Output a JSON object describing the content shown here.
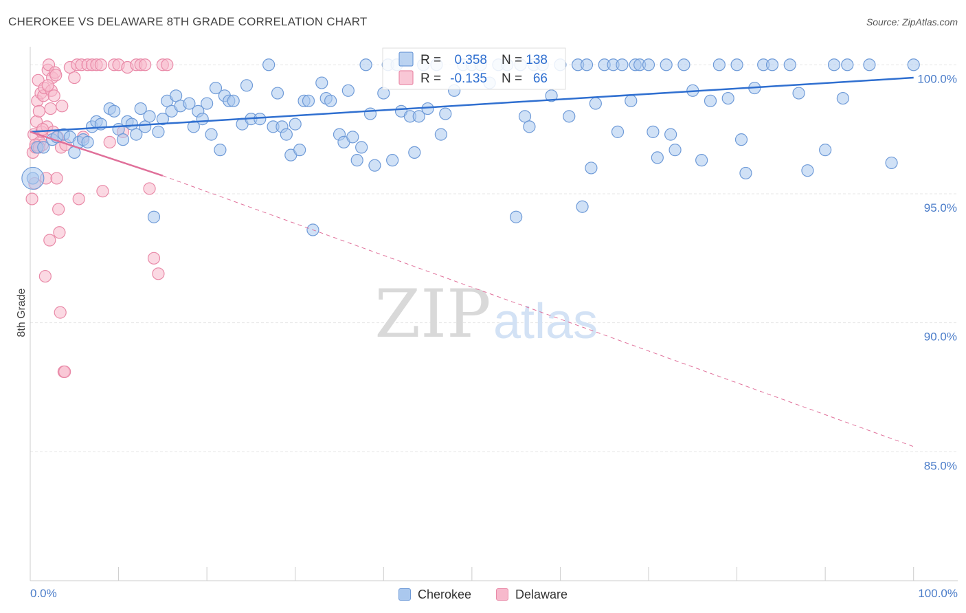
{
  "title": "CHEROKEE VS DELAWARE 8TH GRADE CORRELATION CHART",
  "source": "Source: ZipAtlas.com",
  "watermark": {
    "zip": "ZIP",
    "atlas": "atlas"
  },
  "colors": {
    "blue_fill": "#aac8ee",
    "blue_stroke": "#6f9bd8",
    "blue_line": "#2f6fd0",
    "pink_fill": "#f7b9cc",
    "pink_stroke": "#e98aa8",
    "pink_line": "#e0709a",
    "tick_text": "#4a7cc9",
    "grid": "#e6e6e6"
  },
  "chart_data": {
    "type": "scatter",
    "title": "CHEROKEE VS DELAWARE 8TH GRADE CORRELATION CHART",
    "xlabel": "",
    "ylabel": "8th Grade",
    "xlim": [
      0,
      105
    ],
    "ylim": [
      80.0,
      100.7
    ],
    "x_tick_labels": [
      {
        "value": 0,
        "label": "0.0%"
      },
      {
        "value": 100,
        "label": "100.0%"
      }
    ],
    "x_minor_ticks": [
      0,
      10,
      20,
      30,
      40,
      50,
      60,
      70,
      80,
      90,
      100
    ],
    "y_ticks": [
      {
        "value": 100.0,
        "label": "100.0%"
      },
      {
        "value": 95.0,
        "label": "95.0%"
      },
      {
        "value": 90.0,
        "label": "90.0%"
      },
      {
        "value": 85.0,
        "label": "85.0%"
      }
    ],
    "grid": true,
    "legend": {
      "position": "top-center",
      "entries": [
        {
          "series": "Cherokee",
          "r_label": "R =",
          "r_value": "0.358",
          "n_label": "N =",
          "n_value": "138"
        },
        {
          "series": "Delaware",
          "r_label": "R =",
          "r_value": "-0.135",
          "n_label": "N =",
          "n_value": "66"
        }
      ]
    },
    "series": [
      {
        "name": "Cherokee",
        "trend": {
          "x0": 0,
          "y0": 97.4,
          "x1": 100,
          "y1": 99.5
        },
        "points": [
          [
            0.3,
            95.6
          ],
          [
            0.8,
            96.8
          ],
          [
            1.5,
            96.8
          ],
          [
            2.5,
            97.1
          ],
          [
            3.0,
            97.2
          ],
          [
            3.8,
            97.3
          ],
          [
            4.5,
            97.2
          ],
          [
            5.0,
            96.6
          ],
          [
            5.5,
            97.0
          ],
          [
            6.0,
            97.1
          ],
          [
            6.5,
            97.0
          ],
          [
            7.0,
            97.6
          ],
          [
            7.5,
            97.8
          ],
          [
            8.0,
            97.7
          ],
          [
            9.0,
            98.3
          ],
          [
            9.5,
            98.2
          ],
          [
            10.0,
            97.5
          ],
          [
            10.5,
            97.1
          ],
          [
            11.0,
            97.8
          ],
          [
            11.5,
            97.7
          ],
          [
            12.0,
            97.3
          ],
          [
            12.5,
            98.3
          ],
          [
            13.0,
            97.6
          ],
          [
            13.5,
            98.0
          ],
          [
            14.0,
            94.1
          ],
          [
            14.5,
            97.4
          ],
          [
            15.0,
            97.9
          ],
          [
            15.5,
            98.6
          ],
          [
            16.0,
            98.2
          ],
          [
            16.5,
            98.8
          ],
          [
            17.0,
            98.4
          ],
          [
            18.0,
            98.5
          ],
          [
            18.5,
            97.6
          ],
          [
            19.0,
            98.2
          ],
          [
            19.5,
            97.9
          ],
          [
            20.0,
            98.5
          ],
          [
            20.5,
            97.3
          ],
          [
            21.0,
            99.1
          ],
          [
            21.5,
            96.7
          ],
          [
            22.0,
            98.8
          ],
          [
            22.5,
            98.6
          ],
          [
            23.0,
            98.6
          ],
          [
            24.0,
            97.7
          ],
          [
            24.5,
            99.2
          ],
          [
            25.0,
            97.9
          ],
          [
            26.0,
            97.9
          ],
          [
            27.0,
            100.0
          ],
          [
            27.5,
            97.6
          ],
          [
            28.0,
            98.9
          ],
          [
            28.5,
            97.6
          ],
          [
            29.0,
            97.3
          ],
          [
            29.5,
            96.5
          ],
          [
            30.0,
            97.7
          ],
          [
            30.5,
            96.7
          ],
          [
            31.0,
            98.6
          ],
          [
            31.5,
            98.6
          ],
          [
            32.0,
            93.6
          ],
          [
            33.0,
            99.3
          ],
          [
            33.5,
            98.7
          ],
          [
            34.0,
            98.6
          ],
          [
            35.0,
            97.3
          ],
          [
            35.5,
            97.0
          ],
          [
            36.0,
            99.0
          ],
          [
            36.5,
            97.2
          ],
          [
            37.0,
            96.3
          ],
          [
            37.5,
            96.8
          ],
          [
            38.0,
            100.0
          ],
          [
            38.5,
            98.1
          ],
          [
            39.0,
            96.1
          ],
          [
            40.0,
            98.9
          ],
          [
            40.5,
            100.0
          ],
          [
            41.0,
            96.3
          ],
          [
            41.5,
            100.0
          ],
          [
            42.0,
            98.2
          ],
          [
            43.0,
            98.0
          ],
          [
            43.5,
            96.6
          ],
          [
            44.0,
            98.0
          ],
          [
            44.5,
            100.0
          ],
          [
            45.0,
            98.3
          ],
          [
            46.0,
            100.0
          ],
          [
            46.5,
            97.3
          ],
          [
            47.0,
            98.1
          ],
          [
            48.0,
            99.0
          ],
          [
            49.0,
            100.0
          ],
          [
            50.0,
            100.0
          ],
          [
            51.0,
            100.0
          ],
          [
            52.0,
            99.3
          ],
          [
            53.0,
            100.0
          ],
          [
            54.0,
            100.0
          ],
          [
            55.0,
            94.1
          ],
          [
            55.5,
            100.0
          ],
          [
            56.0,
            98.0
          ],
          [
            56.5,
            97.6
          ],
          [
            57.0,
            100.0
          ],
          [
            58.0,
            100.0
          ],
          [
            59.0,
            98.8
          ],
          [
            60.0,
            100.0
          ],
          [
            61.0,
            98.0
          ],
          [
            62.0,
            100.0
          ],
          [
            62.5,
            94.5
          ],
          [
            63.0,
            100.0
          ],
          [
            63.5,
            96.0
          ],
          [
            64.0,
            98.5
          ],
          [
            65.0,
            100.0
          ],
          [
            66.0,
            100.0
          ],
          [
            66.5,
            97.4
          ],
          [
            67.0,
            100.0
          ],
          [
            68.0,
            98.6
          ],
          [
            68.5,
            100.0
          ],
          [
            69.0,
            100.0
          ],
          [
            70.0,
            100.0
          ],
          [
            70.5,
            97.4
          ],
          [
            71.0,
            96.4
          ],
          [
            72.0,
            100.0
          ],
          [
            72.5,
            97.3
          ],
          [
            73.0,
            96.7
          ],
          [
            74.0,
            100.0
          ],
          [
            75.0,
            99.0
          ],
          [
            76.0,
            96.3
          ],
          [
            77.0,
            98.6
          ],
          [
            78.0,
            100.0
          ],
          [
            79.0,
            98.7
          ],
          [
            80.0,
            100.0
          ],
          [
            80.5,
            97.1
          ],
          [
            81.0,
            95.8
          ],
          [
            82.0,
            99.1
          ],
          [
            83.0,
            100.0
          ],
          [
            84.0,
            100.0
          ],
          [
            86.0,
            100.0
          ],
          [
            87.0,
            98.9
          ],
          [
            88.0,
            95.9
          ],
          [
            90.0,
            96.7
          ],
          [
            91.0,
            100.0
          ],
          [
            92.0,
            98.7
          ],
          [
            92.5,
            100.0
          ],
          [
            95.0,
            100.0
          ],
          [
            97.5,
            96.2
          ],
          [
            100.0,
            100.0
          ]
        ]
      },
      {
        "name": "Delaware",
        "trend": {
          "x0": 0,
          "y0": 97.4,
          "x1": 15,
          "y1": 95.7,
          "x_dashed_end": 100,
          "y_dashed_end": 85.2
        },
        "points": [
          [
            0.2,
            94.8
          ],
          [
            0.3,
            96.6
          ],
          [
            0.4,
            97.3
          ],
          [
            0.5,
            95.4
          ],
          [
            0.6,
            96.8
          ],
          [
            0.7,
            97.8
          ],
          [
            0.8,
            98.6
          ],
          [
            0.9,
            99.4
          ],
          [
            1.0,
            98.2
          ],
          [
            1.1,
            97.0
          ],
          [
            1.2,
            98.9
          ],
          [
            1.3,
            97.4
          ],
          [
            1.4,
            96.9
          ],
          [
            1.5,
            98.8
          ],
          [
            1.6,
            99.1
          ],
          [
            1.7,
            91.8
          ],
          [
            1.8,
            95.6
          ],
          [
            1.9,
            97.6
          ],
          [
            2.0,
            99.8
          ],
          [
            2.1,
            100.0
          ],
          [
            2.2,
            93.2
          ],
          [
            2.3,
            98.3
          ],
          [
            2.4,
            99.0
          ],
          [
            2.5,
            99.5
          ],
          [
            2.6,
            97.4
          ],
          [
            2.7,
            98.8
          ],
          [
            2.8,
            99.7
          ],
          [
            2.9,
            99.6
          ],
          [
            3.0,
            95.6
          ],
          [
            3.1,
            97.2
          ],
          [
            3.2,
            94.4
          ],
          [
            3.3,
            93.5
          ],
          [
            3.4,
            90.4
          ],
          [
            3.5,
            96.8
          ],
          [
            3.6,
            98.4
          ],
          [
            3.8,
            88.1
          ],
          [
            3.9,
            88.1
          ],
          [
            4.0,
            96.9
          ],
          [
            4.5,
            99.9
          ],
          [
            5.0,
            99.5
          ],
          [
            5.3,
            100.0
          ],
          [
            5.5,
            94.8
          ],
          [
            5.8,
            100.0
          ],
          [
            6.0,
            97.2
          ],
          [
            6.5,
            100.0
          ],
          [
            7.0,
            100.0
          ],
          [
            7.5,
            100.0
          ],
          [
            8.0,
            100.0
          ],
          [
            8.2,
            95.1
          ],
          [
            9.0,
            97.0
          ],
          [
            9.5,
            100.0
          ],
          [
            10.0,
            100.0
          ],
          [
            10.5,
            97.4
          ],
          [
            11.0,
            99.9
          ],
          [
            12.0,
            100.0
          ],
          [
            12.5,
            100.0
          ],
          [
            13.0,
            100.0
          ],
          [
            13.5,
            95.2
          ],
          [
            14.0,
            92.5
          ],
          [
            14.5,
            91.9
          ],
          [
            15.0,
            100.0
          ],
          [
            15.5,
            100.0
          ],
          [
            0.6,
            96.9
          ],
          [
            1.0,
            96.8
          ],
          [
            1.4,
            97.5
          ],
          [
            2.0,
            99.2
          ]
        ]
      }
    ]
  },
  "bottom_legend": {
    "items": [
      {
        "label": "Cherokee"
      },
      {
        "label": "Delaware"
      }
    ]
  }
}
